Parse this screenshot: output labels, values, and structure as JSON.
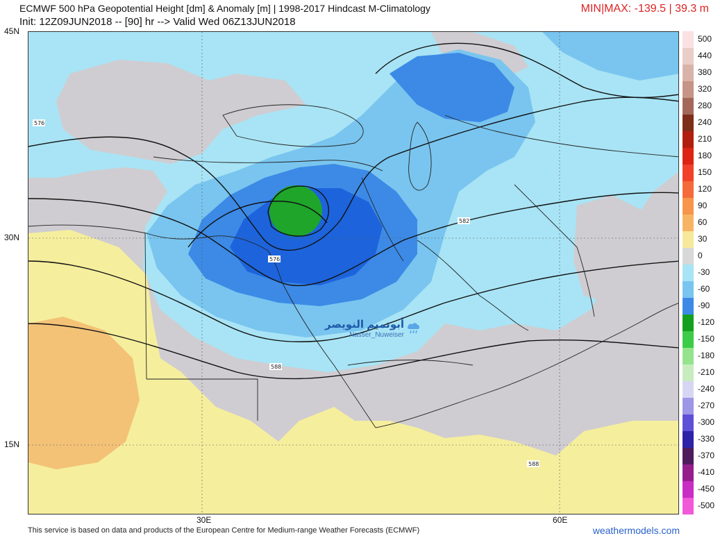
{
  "header": {
    "title": "ECMWF 500 hPa Geopotential Height [dm] & Anomaly [m] | 1998-2017 Hindcast M-Climatology",
    "init": "Init: 12Z09JUN2018 -- [90] hr --> Valid Wed 06Z13JUN2018",
    "minmax": "MIN|MAX: -139.5 | 39.3 m"
  },
  "axes": {
    "lat_labels": [
      "45N",
      "30N",
      "15N"
    ],
    "lon_labels": [
      "30E",
      "60E"
    ]
  },
  "legend": [
    {
      "label": "500",
      "color": "#fbe1e1"
    },
    {
      "label": "440",
      "color": "#ebcdc7"
    },
    {
      "label": "380",
      "color": "#d9b3aa"
    },
    {
      "label": "320",
      "color": "#c79488"
    },
    {
      "label": "280",
      "color": "#a3685a"
    },
    {
      "label": "240",
      "color": "#7d2e18"
    },
    {
      "label": "210",
      "color": "#b01e0f"
    },
    {
      "label": "180",
      "color": "#dd2414"
    },
    {
      "label": "150",
      "color": "#f2412a"
    },
    {
      "label": "120",
      "color": "#f46a3a"
    },
    {
      "label": "90",
      "color": "#f7954b"
    },
    {
      "label": "60",
      "color": "#f8b465"
    },
    {
      "label": "30",
      "color": "#f7e89a"
    },
    {
      "label": "0",
      "color": "#d8d8d8"
    },
    {
      "label": "-30",
      "color": "#a8e4f5"
    },
    {
      "label": "-60",
      "color": "#79c5ef"
    },
    {
      "label": "-90",
      "color": "#3c8ae6"
    },
    {
      "label": "-120",
      "color": "#14a01e"
    },
    {
      "label": "-150",
      "color": "#3ccc48"
    },
    {
      "label": "-180",
      "color": "#95e48d"
    },
    {
      "label": "-210",
      "color": "#c8ecc0"
    },
    {
      "label": "-240",
      "color": "#d7d6f2"
    },
    {
      "label": "-270",
      "color": "#9e96e6"
    },
    {
      "label": "-300",
      "color": "#5e50d6"
    },
    {
      "label": "-330",
      "color": "#2d22a8"
    },
    {
      "label": "-370",
      "color": "#4e1c5c"
    },
    {
      "label": "-410",
      "color": "#961e8c"
    },
    {
      "label": "-450",
      "color": "#c82ec3"
    },
    {
      "label": "-500",
      "color": "#f05ad8"
    }
  ],
  "contour_labels": [
    "576",
    "582",
    "576",
    "588",
    "588"
  ],
  "watermark": {
    "arabic": "أبوتميم النويصر",
    "handle": "Nasser_Nuweiser"
  },
  "footer": {
    "text": "This service is based on data and products of the European Centre for Medium-range Weather Forecasts (ECMWF)",
    "site": "weathermodels.com"
  },
  "colors": {
    "gray": "#cfcdd1",
    "yellow": "#f5ee9d",
    "orange": "#f3c277",
    "blue1": "#a8e4f5",
    "blue2": "#79c5ef",
    "blue3": "#3c8ae6",
    "blue4": "#1d64dc",
    "green": "#1ea52a",
    "minmax": "#dd2222",
    "site": "#2a62c9"
  }
}
